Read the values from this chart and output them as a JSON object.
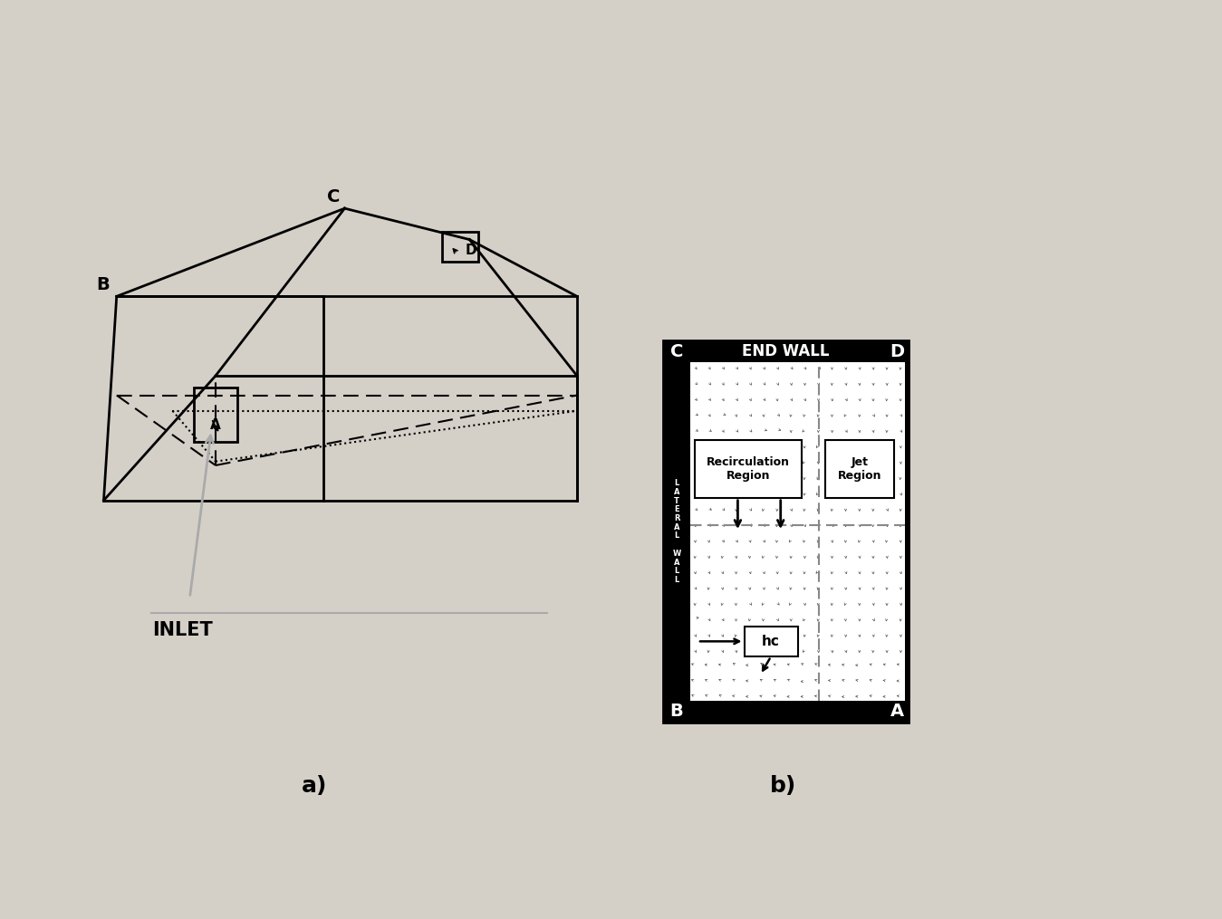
{
  "label_a": "a)",
  "label_b": "b)",
  "inlet_text": "INLET",
  "end_wall_text": "END WALL",
  "lateral_wall_text": "LATERAL\n \nWALL",
  "recirculation_text": "Recirculation\nRegion",
  "jet_text": "Jet\nRegion",
  "hc_text": "hc",
  "slide_bg": "#ffffff",
  "chrome_bg": "#d4d0c8",
  "panel_bg": "#000000",
  "white": "#ffffff",
  "black": "#000000",
  "gray": "#888888"
}
